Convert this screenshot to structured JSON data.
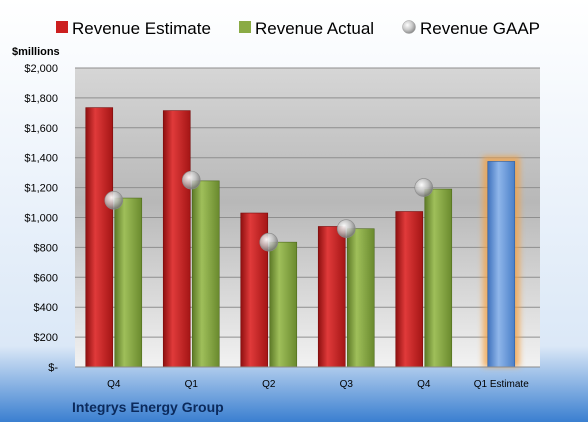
{
  "chart_data": {
    "type": "bar",
    "title": "",
    "company_label": "Integrys Energy Group",
    "ylabel": "$millions",
    "xlabel": "",
    "ylim": [
      0,
      2000
    ],
    "yticks": [
      0,
      200,
      400,
      600,
      800,
      1000,
      1200,
      1400,
      1600,
      1800,
      2000
    ],
    "ytick_labels": [
      "$-",
      "$200",
      "$400",
      "$600",
      "$800",
      "$1,000",
      "$1,200",
      "$1,400",
      "$1,600",
      "$1,800",
      "$2,000"
    ],
    "categories": [
      "Q4",
      "Q1",
      "Q2",
      "Q3",
      "Q4",
      "Q1 Estimate"
    ],
    "series": [
      {
        "name": "Revenue Estimate",
        "kind": "bar",
        "color": "#cc1f1f",
        "values": [
          1735,
          1715,
          1030,
          940,
          1040,
          null
        ]
      },
      {
        "name": "Revenue Actual",
        "kind": "bar",
        "color": "#7f9f3a",
        "values": [
          1130,
          1245,
          835,
          925,
          1190,
          null
        ]
      },
      {
        "name": "Revenue GAAP",
        "kind": "marker",
        "color": "#c8c8c8",
        "values": [
          1115,
          1250,
          835,
          925,
          1200,
          null
        ]
      },
      {
        "name": "",
        "kind": "bar",
        "color": "#5b8fd6",
        "highlight": "#f5a040",
        "values": [
          null,
          null,
          null,
          null,
          null,
          1375
        ]
      }
    ],
    "legend_position": "top",
    "grid": true
  }
}
